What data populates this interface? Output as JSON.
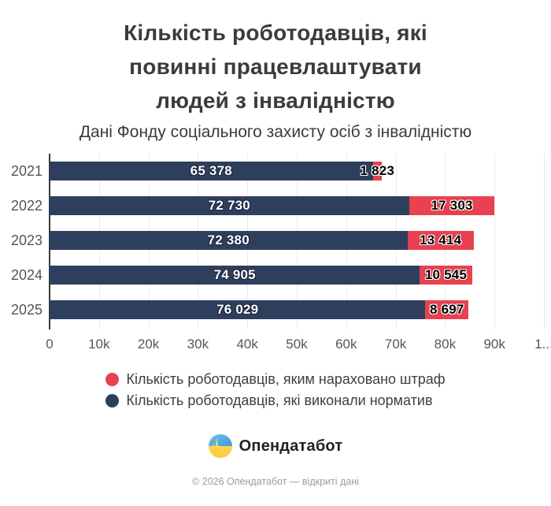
{
  "header": {
    "title_lines": [
      "Кількість роботодавців, які",
      "повинні працевлаштувати",
      "людей з інвалідністю"
    ],
    "subtitle": "Дані Фонду соціального захисту осіб з інвалідністю"
  },
  "chart_data": {
    "type": "bar",
    "orientation": "horizontal",
    "stacked": true,
    "title": "Кількість роботодавців, які повинні працевлаштувати людей з інвалідністю",
    "subtitle": "Дані Фонду соціального захисту осіб з інвалідністю",
    "categories": [
      "2021",
      "2022",
      "2023",
      "2024",
      "2025"
    ],
    "series": [
      {
        "name": "Кількість роботодавців, які виконали норматив",
        "color": "#2e3f5e",
        "values": [
          65378,
          72730,
          72380,
          74905,
          76029
        ],
        "value_labels": [
          "65 378",
          "72 730",
          "72 380",
          "74 905",
          "76 029"
        ]
      },
      {
        "name": "Кількість роботодавців, яким нараховано штраф",
        "color": "#e8414f",
        "values": [
          1823,
          17303,
          13414,
          10545,
          8697
        ],
        "value_labels": [
          "1 823",
          "17 303",
          "13 414",
          "10 545",
          "8 697"
        ]
      }
    ],
    "xlim": [
      0,
      100000
    ],
    "xticks": [
      {
        "label": "0",
        "value": 0
      },
      {
        "label": "10k",
        "value": 10000
      },
      {
        "label": "20k",
        "value": 20000
      },
      {
        "label": "30k",
        "value": 30000
      },
      {
        "label": "40k",
        "value": 40000
      },
      {
        "label": "50k",
        "value": 50000
      },
      {
        "label": "60k",
        "value": 60000
      },
      {
        "label": "70k",
        "value": 70000
      },
      {
        "label": "80k",
        "value": 80000
      },
      {
        "label": "90k",
        "value": 90000
      },
      {
        "label": "1...",
        "value": 100000
      }
    ],
    "grid": "vertical",
    "legend_position": "bottom"
  },
  "legend": {
    "items": [
      {
        "label": "Кількість роботодавців, яким нараховано штраф",
        "color": "#e8414f"
      },
      {
        "label": "Кількість роботодавців, які виконали норматив",
        "color": "#2e3f5e"
      }
    ]
  },
  "footer": {
    "brand": "Опендатабот",
    "copyright": "© 2026 Опендатабот — відкриті дані"
  },
  "colors": {
    "norm_bar": "#2e3f5e",
    "fine_bar": "#e8414f",
    "grid": "#e9e9e9",
    "axis": "#3a3a3a",
    "logo_blue": "#55a9e8",
    "logo_yellow": "#ffd84d"
  }
}
